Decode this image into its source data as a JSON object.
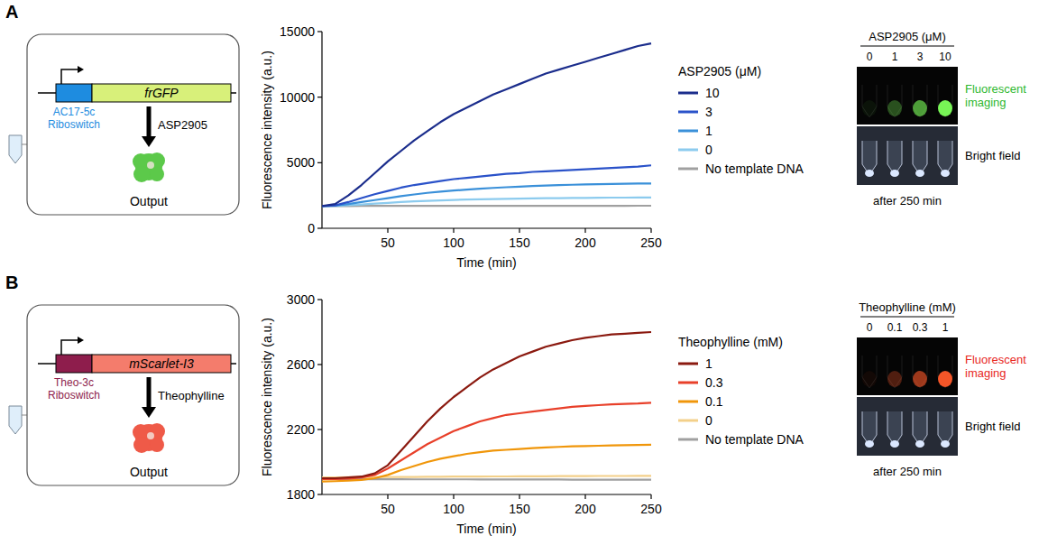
{
  "panels": [
    {
      "letter": "A",
      "riboswitch": "AC17-5c Riboswitch",
      "gene": "frGFP",
      "ligand": "ASP2905",
      "output": "Output",
      "imaging": {
        "title": "ASP2905 (μM)",
        "lanes": [
          "0",
          "1",
          "3",
          "10"
        ],
        "rows": [
          "Fluorescent imaging",
          "Bright field"
        ],
        "caption": "after 250 min"
      }
    },
    {
      "letter": "B",
      "riboswitch": "Theo-3c Riboswitch",
      "gene": "mScarlet-I3",
      "ligand": "Theophylline",
      "output": "Output",
      "imaging": {
        "title": "Theophylline (mM)",
        "lanes": [
          "0",
          "0.1",
          "0.3",
          "1"
        ],
        "rows": [
          "Fluorescent imaging",
          "Bright field"
        ],
        "caption": "after 250 min"
      }
    }
  ],
  "chart_data": [
    {
      "type": "line",
      "x_label": "Time (min)",
      "y_label": "Fluorescence intensity (a.u.)",
      "legend_title": "ASP2905 (μM)",
      "legend": "right",
      "x": [
        0,
        10,
        20,
        30,
        40,
        50,
        60,
        70,
        80,
        90,
        100,
        110,
        120,
        130,
        140,
        150,
        160,
        170,
        180,
        190,
        200,
        210,
        220,
        230,
        240,
        250
      ],
      "xlim": [
        0,
        250
      ],
      "xticks": [
        50,
        100,
        150,
        200,
        250
      ],
      "ylim": [
        0,
        15000
      ],
      "yticks": [
        0,
        5000,
        10000,
        15000
      ],
      "series": [
        {
          "name": "10",
          "color": "#1b2d8c",
          "values": [
            1700,
            1850,
            2500,
            3300,
            4200,
            5100,
            5900,
            6700,
            7400,
            8100,
            8700,
            9200,
            9700,
            10200,
            10600,
            11000,
            11400,
            11800,
            12100,
            12400,
            12700,
            13000,
            13300,
            13600,
            13900,
            14100
          ]
        },
        {
          "name": "3",
          "color": "#2a52c9",
          "values": [
            1700,
            1750,
            2000,
            2300,
            2600,
            2850,
            3100,
            3300,
            3450,
            3600,
            3750,
            3850,
            3950,
            4050,
            4150,
            4200,
            4300,
            4350,
            4400,
            4450,
            4500,
            4550,
            4600,
            4650,
            4700,
            4800
          ]
        },
        {
          "name": "1",
          "color": "#3a90d9",
          "values": [
            1700,
            1720,
            1850,
            2000,
            2150,
            2300,
            2450,
            2580,
            2700,
            2800,
            2880,
            2950,
            3020,
            3080,
            3130,
            3180,
            3220,
            3260,
            3290,
            3320,
            3340,
            3360,
            3380,
            3400,
            3410,
            3420
          ]
        },
        {
          "name": "0",
          "color": "#8ccbee",
          "values": [
            1700,
            1710,
            1760,
            1820,
            1880,
            1940,
            2000,
            2050,
            2090,
            2130,
            2160,
            2190,
            2210,
            2230,
            2250,
            2260,
            2280,
            2290,
            2300,
            2310,
            2320,
            2330,
            2340,
            2340,
            2350,
            2350
          ]
        },
        {
          "name": "No template DNA",
          "color": "#a0a0a0",
          "values": [
            1700,
            1700,
            1700,
            1705,
            1705,
            1705,
            1710,
            1710,
            1710,
            1710,
            1710,
            1710,
            1712,
            1712,
            1712,
            1714,
            1714,
            1714,
            1716,
            1716,
            1716,
            1718,
            1718,
            1718,
            1720,
            1720
          ]
        }
      ]
    },
    {
      "type": "line",
      "x_label": "Time (min)",
      "y_label": "Fluorescence intensity (a.u.)",
      "legend_title": "Theophylline (mM)",
      "legend": "right",
      "x": [
        0,
        10,
        20,
        30,
        40,
        50,
        60,
        70,
        80,
        90,
        100,
        110,
        120,
        130,
        140,
        150,
        160,
        170,
        180,
        190,
        200,
        210,
        220,
        230,
        240,
        250
      ],
      "xlim": [
        0,
        250
      ],
      "xticks": [
        50,
        100,
        150,
        200,
        250
      ],
      "ylim": [
        1800,
        3000
      ],
      "yticks": [
        1800,
        2200,
        2600,
        3000
      ],
      "series": [
        {
          "name": "1",
          "color": "#8b1a10",
          "values": [
            1900,
            1900,
            1905,
            1910,
            1930,
            1980,
            2070,
            2160,
            2250,
            2330,
            2400,
            2460,
            2520,
            2570,
            2610,
            2650,
            2680,
            2710,
            2730,
            2750,
            2765,
            2775,
            2785,
            2790,
            2795,
            2800
          ]
        },
        {
          "name": "0.3",
          "color": "#e8402a",
          "values": [
            1895,
            1895,
            1898,
            1905,
            1920,
            1960,
            2010,
            2060,
            2110,
            2150,
            2190,
            2220,
            2250,
            2270,
            2290,
            2300,
            2310,
            2320,
            2330,
            2340,
            2345,
            2350,
            2355,
            2358,
            2360,
            2365
          ]
        },
        {
          "name": "0.1",
          "color": "#f0960a",
          "values": [
            1880,
            1882,
            1885,
            1890,
            1900,
            1920,
            1950,
            1975,
            2000,
            2020,
            2035,
            2050,
            2060,
            2070,
            2075,
            2080,
            2085,
            2090,
            2093,
            2096,
            2098,
            2100,
            2102,
            2104,
            2105,
            2106
          ]
        },
        {
          "name": "0",
          "color": "#f3d08a",
          "values": [
            1905,
            1905,
            1906,
            1906,
            1907,
            1907,
            1908,
            1908,
            1909,
            1909,
            1910,
            1910,
            1910,
            1911,
            1911,
            1912,
            1912,
            1912,
            1913,
            1913,
            1913,
            1914,
            1914,
            1914,
            1915,
            1915
          ]
        },
        {
          "name": "No template DNA",
          "color": "#a0a0a0",
          "values": [
            1895,
            1895,
            1895,
            1894,
            1894,
            1894,
            1894,
            1893,
            1893,
            1893,
            1893,
            1893,
            1892,
            1892,
            1892,
            1892,
            1892,
            1892,
            1892,
            1891,
            1891,
            1891,
            1891,
            1891,
            1891,
            1891
          ]
        }
      ]
    }
  ]
}
